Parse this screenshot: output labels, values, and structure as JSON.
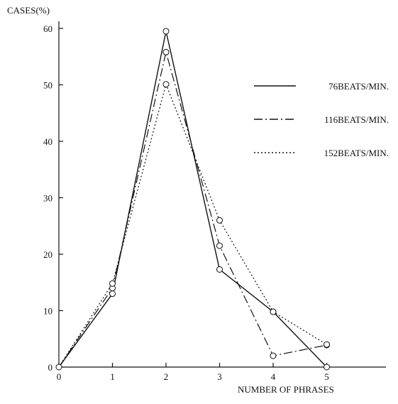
{
  "chart_data": {
    "type": "line",
    "title": "",
    "xlabel": "NUMBER OF PHRASES",
    "ylabel": "CASES(%)",
    "xlim": [
      0,
      6.1
    ],
    "ylim": [
      0,
      63
    ],
    "x_ticks": [
      0,
      1,
      2,
      3,
      4,
      5
    ],
    "y_ticks": [
      0,
      10,
      20,
      30,
      40,
      50,
      60
    ],
    "grid": false,
    "legend_position": "right",
    "x": [
      0,
      1,
      2,
      3,
      4,
      5
    ],
    "series": [
      {
        "name": "76BEATS/MIN.",
        "line_style": "solid",
        "values": [
          0,
          13,
          59.5,
          17.3,
          9.8,
          0
        ]
      },
      {
        "name": "116BEATS/MIN.",
        "line_style": "dash-dot",
        "values": [
          0,
          14,
          55.8,
          21.5,
          2,
          3.9
        ]
      },
      {
        "name": "152BEATS/MIN.",
        "line_style": "dotted",
        "values": [
          0,
          14.8,
          50.1,
          26,
          9.8,
          4
        ]
      }
    ]
  }
}
